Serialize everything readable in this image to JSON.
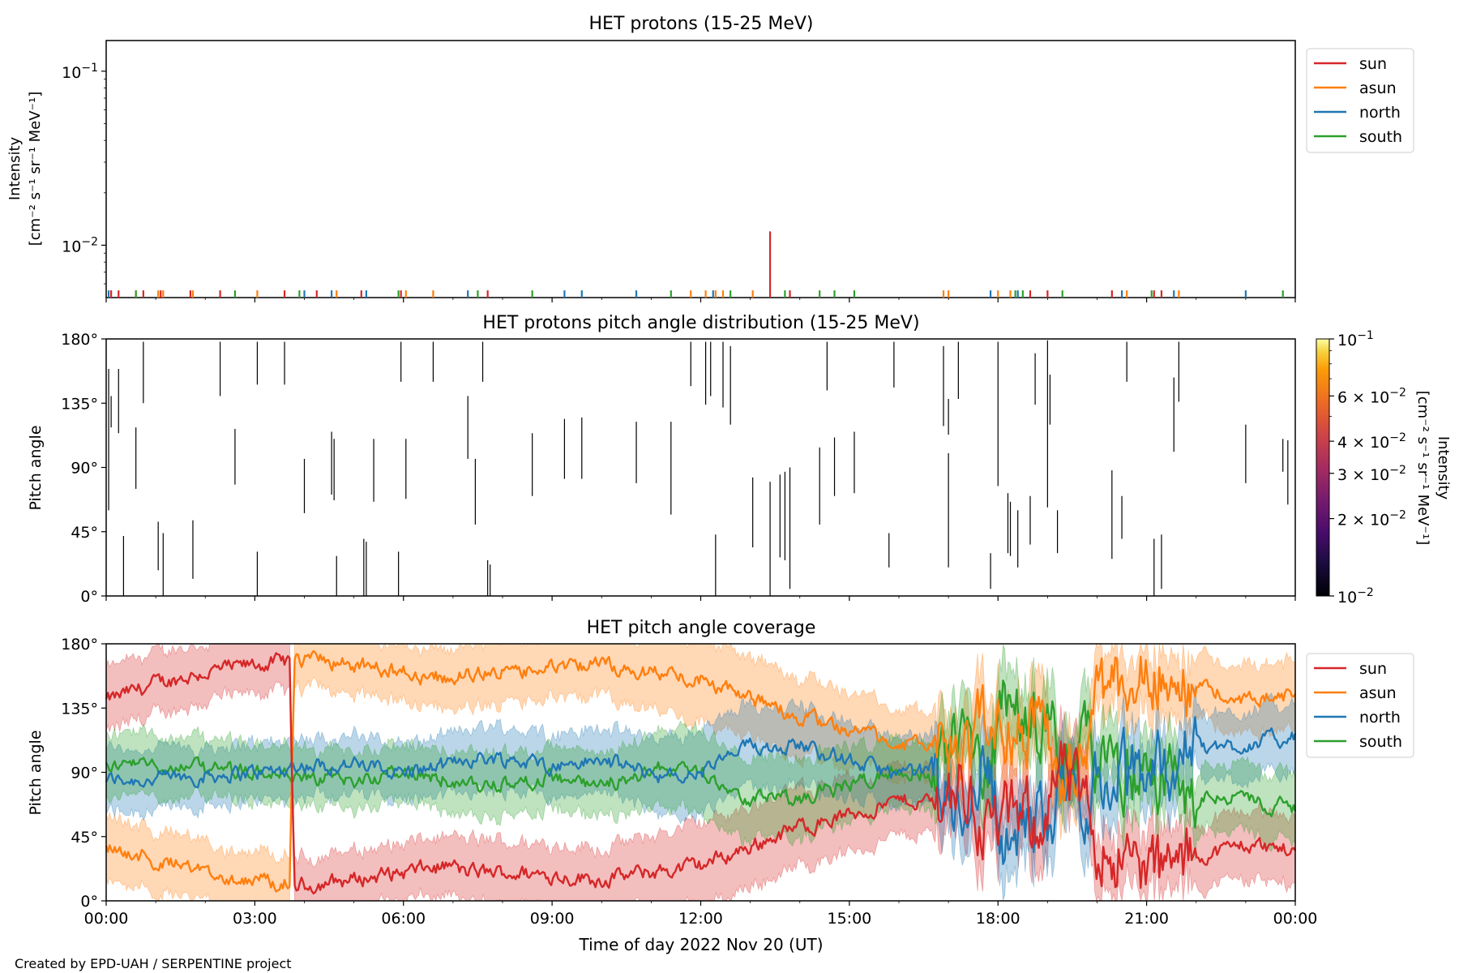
{
  "figure": {
    "credit": "Created by EPD-UAH / SERPENTINE project",
    "xlabel": "Time of day 2022 Nov 20 (UT)",
    "xticks": [
      "00:00",
      "03:00",
      "06:00",
      "09:00",
      "12:00",
      "15:00",
      "18:00",
      "21:00",
      "00:00"
    ]
  },
  "colors": {
    "sun": "#d62728",
    "asun": "#ff7f0e",
    "north": "#1f77b4",
    "south": "#2ca02c"
  },
  "chart_data": [
    {
      "type": "line",
      "title": "HET protons (15-25 MeV)",
      "ylabel_line1": "Intensity",
      "ylabel_line2": "[cm⁻² s⁻¹ sr⁻¹ MeV⁻¹]",
      "yscale": "log",
      "ylim": [
        0.005,
        0.15
      ],
      "yticks": [
        {
          "value": 0.01,
          "base": "10",
          "exp": "−2"
        },
        {
          "value": 0.1,
          "base": "10",
          "exp": "−1"
        }
      ],
      "xlim_hours": [
        0,
        24
      ],
      "legend": "top-right",
      "series": [
        {
          "name": "sun",
          "key": "sun",
          "spikes": [
            [
              0.1,
              0.0055
            ],
            [
              0.25,
              0.0055
            ],
            [
              0.75,
              0.0055
            ],
            [
              1.1,
              0.0055
            ],
            [
              1.7,
              0.0055
            ],
            [
              2.3,
              0.0055
            ],
            [
              3.6,
              0.0055
            ],
            [
              4.25,
              0.0055
            ],
            [
              5.15,
              0.0055
            ],
            [
              5.95,
              0.0055
            ],
            [
              7.7,
              0.0055
            ],
            [
              13.4,
              0.012
            ],
            [
              13.8,
              0.0055
            ],
            [
              18.65,
              0.0055
            ],
            [
              19.0,
              0.0055
            ],
            [
              20.3,
              0.0055
            ],
            [
              21.15,
              0.0055
            ],
            [
              21.3,
              0.0055
            ]
          ]
        },
        {
          "name": "asun",
          "key": "asun",
          "spikes": [
            [
              0.6,
              0.0055
            ],
            [
              1.05,
              0.0055
            ],
            [
              1.15,
              0.0055
            ],
            [
              1.75,
              0.0055
            ],
            [
              3.05,
              0.0055
            ],
            [
              4.65,
              0.0055
            ],
            [
              6.05,
              0.0055
            ],
            [
              6.6,
              0.0055
            ],
            [
              11.8,
              0.0055
            ],
            [
              12.1,
              0.0055
            ],
            [
              12.3,
              0.0055
            ],
            [
              12.45,
              0.0055
            ],
            [
              13.05,
              0.0055
            ],
            [
              16.9,
              0.0055
            ],
            [
              17.0,
              0.0055
            ],
            [
              18.0,
              0.0055
            ],
            [
              18.25,
              0.0055
            ],
            [
              20.6,
              0.0055
            ],
            [
              21.65,
              0.0055
            ]
          ]
        },
        {
          "name": "north",
          "key": "north",
          "spikes": [
            [
              0.05,
              0.0055
            ],
            [
              4.0,
              0.0055
            ],
            [
              4.55,
              0.0055
            ],
            [
              5.25,
              0.0055
            ],
            [
              7.3,
              0.0055
            ],
            [
              9.25,
              0.0055
            ],
            [
              9.6,
              0.0055
            ],
            [
              10.7,
              0.0055
            ],
            [
              12.25,
              0.0055
            ],
            [
              17.85,
              0.0055
            ],
            [
              18.4,
              0.0055
            ],
            [
              20.5,
              0.0055
            ],
            [
              21.55,
              0.0055
            ],
            [
              23.0,
              0.0055
            ]
          ]
        },
        {
          "name": "south",
          "key": "south",
          "spikes": [
            [
              0.6,
              0.0055
            ],
            [
              2.6,
              0.0055
            ],
            [
              3.9,
              0.0055
            ],
            [
              5.9,
              0.0055
            ],
            [
              7.5,
              0.0055
            ],
            [
              8.6,
              0.0055
            ],
            [
              11.4,
              0.0055
            ],
            [
              12.6,
              0.0055
            ],
            [
              13.7,
              0.0055
            ],
            [
              14.4,
              0.0055
            ],
            [
              14.7,
              0.0055
            ],
            [
              15.1,
              0.0055
            ],
            [
              18.35,
              0.0055
            ],
            [
              18.5,
              0.0055
            ],
            [
              19.3,
              0.0055
            ],
            [
              21.1,
              0.0055
            ],
            [
              23.75,
              0.0055
            ]
          ]
        }
      ]
    },
    {
      "type": "heatmap",
      "title": "HET protons pitch angle distribution (15-25 MeV)",
      "ylabel": "Pitch angle",
      "ylim": [
        0,
        180
      ],
      "yticks": [
        "0°",
        "45°",
        "90°",
        "135°",
        "180°"
      ],
      "xlim_hours": [
        0,
        24
      ],
      "colorbar": {
        "label_line1": "Intensity",
        "label_line2": "[cm⁻² s⁻¹ sr⁻¹ MeV⁻¹]",
        "scale": "log",
        "range": [
          0.01,
          0.1
        ],
        "ticks": [
          {
            "value": 0.01,
            "mant": "",
            "base": "10",
            "exp": "−2"
          },
          {
            "value": 0.02,
            "mant": "2 × ",
            "base": "10",
            "exp": "−2"
          },
          {
            "value": 0.03,
            "mant": "3 × ",
            "base": "10",
            "exp": "−2"
          },
          {
            "value": 0.04,
            "mant": "4 × ",
            "base": "10",
            "exp": "−2"
          },
          {
            "value": 0.06,
            "mant": "6 × ",
            "base": "10",
            "exp": "−2"
          },
          {
            "value": 0.1,
            "mant": "",
            "base": "10",
            "exp": "−1"
          }
        ]
      },
      "segments": [
        [
          0.05,
          60,
          159
        ],
        [
          0.1,
          118,
          140
        ],
        [
          0.25,
          114,
          159
        ],
        [
          0.35,
          0,
          42
        ],
        [
          0.6,
          75,
          118
        ],
        [
          0.75,
          135,
          178
        ],
        [
          1.05,
          18,
          52
        ],
        [
          1.15,
          0,
          44
        ],
        [
          1.75,
          12,
          53
        ],
        [
          2.3,
          140,
          178
        ],
        [
          2.6,
          78,
          117
        ],
        [
          3.05,
          0,
          31
        ],
        [
          3.05,
          148,
          178
        ],
        [
          3.6,
          148,
          178
        ],
        [
          4.0,
          58,
          96
        ],
        [
          4.55,
          71,
          115
        ],
        [
          4.6,
          67,
          110
        ],
        [
          4.65,
          0,
          28
        ],
        [
          5.2,
          0,
          40
        ],
        [
          5.25,
          0,
          38
        ],
        [
          5.4,
          66,
          110
        ],
        [
          5.9,
          0,
          31
        ],
        [
          5.95,
          150,
          178
        ],
        [
          6.05,
          68,
          110
        ],
        [
          6.1,
          0,
          0
        ],
        [
          6.6,
          150,
          178
        ],
        [
          7.3,
          96,
          140
        ],
        [
          7.45,
          50,
          96
        ],
        [
          7.6,
          150,
          178
        ],
        [
          7.7,
          0,
          25
        ],
        [
          7.75,
          0,
          22
        ],
        [
          8.6,
          70,
          114
        ],
        [
          9.25,
          82,
          124
        ],
        [
          9.6,
          82,
          125
        ],
        [
          10.7,
          79,
          122
        ],
        [
          11.4,
          57,
          122
        ],
        [
          11.8,
          147,
          178
        ],
        [
          12.1,
          134,
          178
        ],
        [
          12.2,
          140,
          178
        ],
        [
          12.3,
          0,
          43
        ],
        [
          12.45,
          132,
          178
        ],
        [
          12.6,
          120,
          175
        ],
        [
          13.05,
          34,
          83
        ],
        [
          13.4,
          0,
          80
        ],
        [
          13.6,
          27,
          85
        ],
        [
          13.7,
          25,
          87
        ],
        [
          13.8,
          5,
          90
        ],
        [
          14.4,
          50,
          104
        ],
        [
          14.55,
          144,
          178
        ],
        [
          14.7,
          70,
          111
        ],
        [
          15.1,
          72,
          115
        ],
        [
          15.8,
          20,
          44
        ],
        [
          15.9,
          146,
          178
        ],
        [
          16.9,
          119,
          175
        ],
        [
          17.0,
          20,
          100
        ],
        [
          17.0,
          113,
          138
        ],
        [
          17.2,
          138,
          178
        ],
        [
          17.85,
          5,
          30
        ],
        [
          18.0,
          77,
          178
        ],
        [
          18.2,
          30,
          72
        ],
        [
          18.25,
          28,
          66
        ],
        [
          18.4,
          20,
          60
        ],
        [
          18.65,
          36,
          70
        ],
        [
          18.75,
          134,
          170
        ],
        [
          19.0,
          62,
          179
        ],
        [
          19.05,
          120,
          155
        ],
        [
          19.2,
          30,
          60
        ],
        [
          20.3,
          26,
          88
        ],
        [
          20.5,
          40,
          70
        ],
        [
          20.6,
          150,
          178
        ],
        [
          21.15,
          0,
          40
        ],
        [
          21.3,
          5,
          43
        ],
        [
          21.55,
          101,
          153
        ],
        [
          21.65,
          136,
          178
        ],
        [
          23.0,
          79,
          120
        ],
        [
          23.75,
          87,
          110
        ],
        [
          23.85,
          64,
          109
        ]
      ]
    },
    {
      "type": "area",
      "title": "HET pitch angle coverage",
      "ylabel": "Pitch angle",
      "ylim": [
        0,
        180
      ],
      "yticks": [
        "0°",
        "45°",
        "90°",
        "135°",
        "180°"
      ],
      "xlim_hours": [
        0,
        24
      ],
      "legend": "top-right",
      "series": [
        {
          "name": "sun",
          "key": "sun"
        },
        {
          "name": "asun",
          "key": "asun"
        },
        {
          "name": "north",
          "key": "north"
        },
        {
          "name": "south",
          "key": "south"
        }
      ],
      "anchors_hours": [
        0,
        1,
        2,
        3,
        3.7,
        3.8,
        5,
        6,
        7,
        7.2,
        8,
        9,
        10,
        11,
        11.5,
        12,
        13,
        14,
        15,
        16,
        16.7,
        17.2,
        17.7,
        18.2,
        18.8,
        19.3,
        20,
        20.7,
        21.5,
        22,
        23,
        24
      ],
      "sun_mean_deg": [
        140,
        152,
        160,
        165,
        168,
        10,
        15,
        20,
        25,
        20,
        20,
        18,
        15,
        20,
        22,
        25,
        38,
        52,
        60,
        70,
        70,
        82,
        55,
        55,
        58,
        90,
        45,
        25,
        20,
        30,
        40,
        35
      ],
      "north_mean_deg": [
        85,
        85,
        88,
        90,
        92,
        95,
        95,
        90,
        95,
        100,
        100,
        95,
        98,
        90,
        85,
        90,
        108,
        110,
        98,
        88,
        90,
        60,
        100,
        40,
        55,
        75,
        78,
        88,
        100,
        105,
        110,
        115
      ],
      "half_width_deg": [
        22,
        22,
        20,
        20,
        20,
        20,
        20,
        20,
        20,
        22,
        22,
        22,
        22,
        25,
        28,
        30,
        28,
        28,
        26,
        24,
        22,
        22,
        24,
        24,
        24,
        24,
        22,
        22,
        22,
        22,
        24,
        24
      ]
    }
  ]
}
